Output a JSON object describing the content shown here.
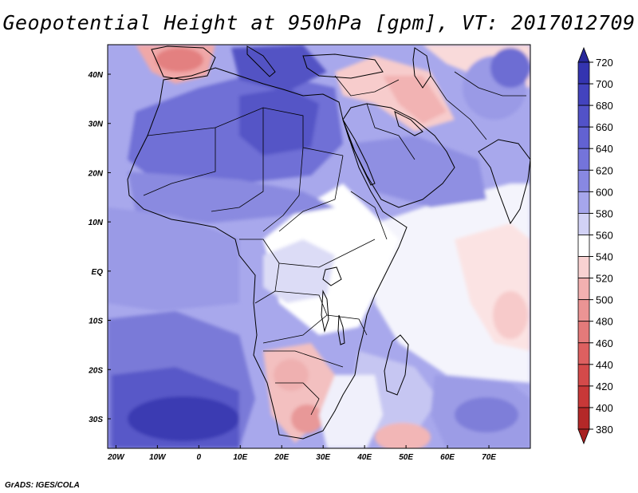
{
  "title": "Geopotential Height at 950hPa [gpm], VT: 2017012709",
  "footer": "GrADS: IGES/COLA",
  "map": {
    "lon_range": [
      -22,
      80
    ],
    "lat_range": [
      -36,
      46
    ],
    "lon_ticks": [
      {
        "lon": -20,
        "label": "20W"
      },
      {
        "lon": -10,
        "label": "10W"
      },
      {
        "lon": 0,
        "label": "0"
      },
      {
        "lon": 10,
        "label": "10E"
      },
      {
        "lon": 20,
        "label": "20E"
      },
      {
        "lon": 30,
        "label": "30E"
      },
      {
        "lon": 40,
        "label": "40E"
      },
      {
        "lon": 50,
        "label": "50E"
      },
      {
        "lon": 60,
        "label": "60E"
      },
      {
        "lon": 70,
        "label": "70E"
      }
    ],
    "lat_ticks": [
      {
        "lat": 40,
        "label": "40N"
      },
      {
        "lat": 30,
        "label": "30N"
      },
      {
        "lat": 20,
        "label": "20N"
      },
      {
        "lat": 10,
        "label": "10N"
      },
      {
        "lat": 0,
        "label": "EQ"
      },
      {
        "lat": -10,
        "label": "10S"
      },
      {
        "lat": -20,
        "label": "20S"
      },
      {
        "lat": -30,
        "label": "30S"
      }
    ]
  },
  "colorbar": {
    "levels": [
      {
        "label": "720",
        "color": "#2a2a9e"
      },
      {
        "label": "700",
        "color": "#3434b0"
      },
      {
        "label": "680",
        "color": "#4343be"
      },
      {
        "label": "660",
        "color": "#5252c8"
      },
      {
        "label": "640",
        "color": "#6262d2"
      },
      {
        "label": "620",
        "color": "#7474da"
      },
      {
        "label": "600",
        "color": "#8888e2"
      },
      {
        "label": "580",
        "color": "#a6a6ec"
      },
      {
        "label": "560",
        "color": "#d2d2f6"
      },
      {
        "label": "540",
        "color": "#ffffff"
      },
      {
        "label": "520",
        "color": "#f9d2d2"
      },
      {
        "label": "500",
        "color": "#f2b0b0"
      },
      {
        "label": "480",
        "color": "#eb9494"
      },
      {
        "label": "460",
        "color": "#e47a7a"
      },
      {
        "label": "440",
        "color": "#dd6060"
      },
      {
        "label": "420",
        "color": "#d44a4a"
      },
      {
        "label": "400",
        "color": "#c83838"
      },
      {
        "label": "380",
        "color": "#b42828"
      }
    ],
    "top_color": "#27279a",
    "bottom_color": "#a82020"
  }
}
